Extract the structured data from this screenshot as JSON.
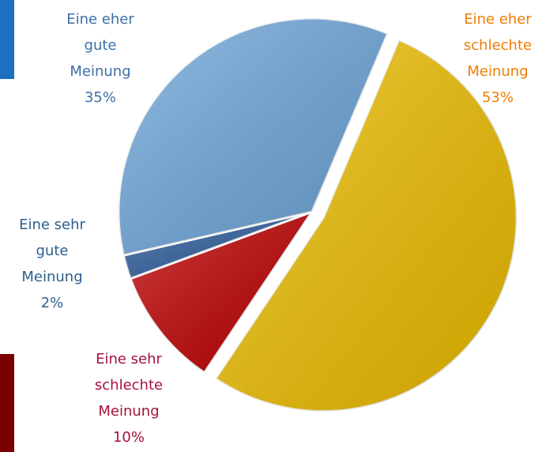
{
  "chart_data": {
    "type": "pie",
    "categories": [
      "Eine eher schlechte Meinung",
      "Eine sehr schlechte Meinung",
      "Eine sehr gute Meinung",
      "Eine eher gute Meinung"
    ],
    "values": [
      53,
      10,
      2,
      35
    ],
    "value_labels": [
      "53%",
      "10%",
      "2%",
      "35%"
    ],
    "colors": [
      "#f0c000",
      "#c00000",
      "#2f5f9f",
      "#6fa8dc"
    ],
    "label_colors": [
      "#f07c00",
      "#a5123c",
      "#2e5f8f",
      "#3d6fa6"
    ]
  }
}
